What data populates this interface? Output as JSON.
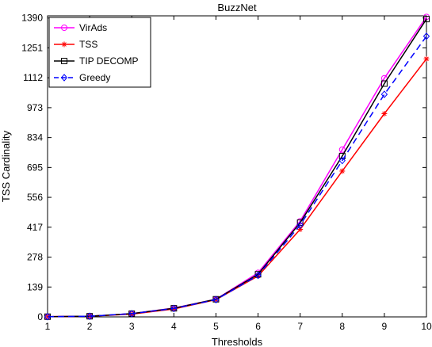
{
  "chart_data": {
    "type": "line",
    "title": "BuzzNet",
    "xlabel": "Thresholds",
    "ylabel": "TSS Cardinality",
    "x": [
      1,
      2,
      3,
      4,
      5,
      6,
      7,
      8,
      9,
      10
    ],
    "xlim": [
      1,
      10
    ],
    "ylim": [
      0,
      1400
    ],
    "yticks": [
      0,
      139,
      278,
      417,
      556,
      695,
      834,
      973,
      1112,
      1251,
      1390
    ],
    "xticks": [
      1,
      2,
      3,
      4,
      5,
      6,
      7,
      8,
      9,
      10
    ],
    "grid": false,
    "legend_position": "top-left",
    "series": [
      {
        "name": "VirAds",
        "color": "#ff00ff",
        "dash": "solid",
        "marker": "circle",
        "values": [
          1,
          3,
          15,
          41,
          82,
          205,
          445,
          778,
          1110,
          1395
        ]
      },
      {
        "name": "TSS",
        "color": "#ff0000",
        "dash": "solid",
        "marker": "star",
        "values": [
          1,
          3,
          13,
          37,
          80,
          190,
          407,
          678,
          945,
          1200
        ]
      },
      {
        "name": "TIP DECOMP",
        "color": "#000000",
        "dash": "solid",
        "marker": "square",
        "values": [
          1,
          3,
          15,
          40,
          82,
          198,
          438,
          748,
          1085,
          1385
        ]
      },
      {
        "name": "Greedy",
        "color": "#0000ff",
        "dash": "dashed",
        "marker": "diamond",
        "values": [
          1,
          3,
          15,
          39,
          80,
          193,
          427,
          727,
          1035,
          1305
        ]
      }
    ]
  }
}
